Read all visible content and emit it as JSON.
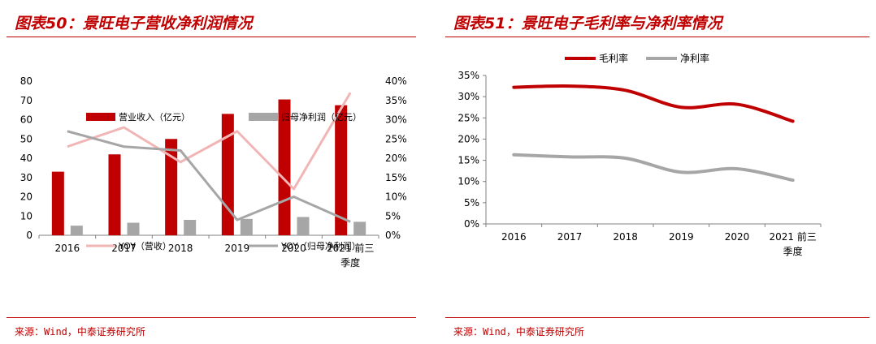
{
  "charts": [
    {
      "fig_title": "图表50：景旺电子营收净利润情况",
      "source": "来源：Wind，中泰证券研究所"
    },
    {
      "fig_title": "图表51：景旺电子毛利率与净利率情况",
      "source": "来源：Wind，中泰证券研究所"
    }
  ],
  "colors": {
    "accent": "#c00000",
    "gray": "#a6a6a6",
    "pink": "#f2b5b5"
  },
  "chart_data": [
    {
      "type": "bar",
      "categories": [
        "2016",
        "2017",
        "2018",
        "2019",
        "2020",
        "2021 前三季度"
      ],
      "category_lines": [
        [
          "2016"
        ],
        [
          "2017"
        ],
        [
          "2018"
        ],
        [
          "2019"
        ],
        [
          "2020"
        ],
        [
          "2021 前三",
          "季度"
        ]
      ],
      "series": [
        {
          "name": "营业收入（亿元）",
          "type": "bar",
          "axis": "left",
          "color": "#c00000",
          "values": [
            33,
            42,
            50,
            63,
            70.5,
            67.5
          ]
        },
        {
          "name": "归母净利润（亿元）",
          "type": "bar",
          "axis": "left",
          "color": "#a6a6a6",
          "values": [
            5,
            6.5,
            8,
            8.5,
            9.5,
            7
          ]
        },
        {
          "name": "YOY（营收）",
          "type": "line",
          "axis": "right",
          "color": "#f2b5b5",
          "values": [
            23,
            28,
            19,
            27,
            12,
            37
          ]
        },
        {
          "name": "YOY（归母净利润）",
          "type": "line",
          "axis": "right",
          "color": "#a6a6a6",
          "values": [
            27,
            23,
            22,
            4,
            10,
            3.5
          ]
        }
      ],
      "y_left": {
        "min": 0,
        "max": 80,
        "step": 10,
        "ticks": [
          "0",
          "10",
          "20",
          "30",
          "40",
          "50",
          "60",
          "70",
          "80"
        ]
      },
      "y_right": {
        "min": 0,
        "max": 40,
        "step": 5,
        "ticks": [
          "0%",
          "5%",
          "10%",
          "15%",
          "20%",
          "25%",
          "30%",
          "35%",
          "40%"
        ]
      },
      "grid": false,
      "legend_position": "inside-top"
    },
    {
      "type": "line",
      "categories": [
        "2016",
        "2017",
        "2018",
        "2019",
        "2020",
        "2021 前三季度"
      ],
      "category_lines": [
        [
          "2016"
        ],
        [
          "2017"
        ],
        [
          "2018"
        ],
        [
          "2019"
        ],
        [
          "2020"
        ],
        [
          "2021 前三",
          "季度"
        ]
      ],
      "series": [
        {
          "name": "毛利率",
          "color": "#c00000",
          "values": [
            32.2,
            32.5,
            31.5,
            27.5,
            28.2,
            24.2
          ]
        },
        {
          "name": "净利率",
          "color": "#a6a6a6",
          "values": [
            16.3,
            15.8,
            15.5,
            12.2,
            13.0,
            10.3
          ]
        }
      ],
      "y": {
        "min": 0,
        "max": 35,
        "step": 5,
        "ticks": [
          "0%",
          "5%",
          "10%",
          "15%",
          "20%",
          "25%",
          "30%",
          "35%"
        ]
      },
      "grid": false,
      "legend_position": "top"
    }
  ]
}
